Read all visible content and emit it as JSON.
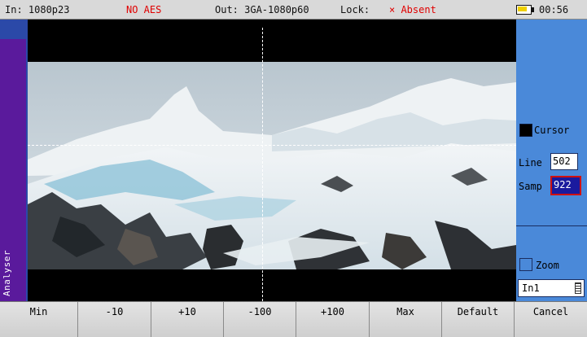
{
  "status": {
    "input": "In: 1080p23",
    "aes": "NO AES",
    "output": "Out: 3GA-1080p60",
    "lock_label": "Lock:",
    "lock_value": "× Absent",
    "time": "00:56"
  },
  "sidetab": {
    "label": "Analyser"
  },
  "panel": {
    "cursor_label": "Cursor",
    "line_label": "Line",
    "line_value": "502",
    "samp_label": "Samp",
    "samp_value": "922",
    "zoom_label": "Zoom",
    "source_value": "In1"
  },
  "softkeys": [
    "Min",
    "-10",
    "+10",
    "-100",
    "+100",
    "Max",
    "Default",
    "Cancel"
  ],
  "colors": {
    "panel": "#4a89d9",
    "tab": "#5a1a9c",
    "alert": "#e00000"
  }
}
